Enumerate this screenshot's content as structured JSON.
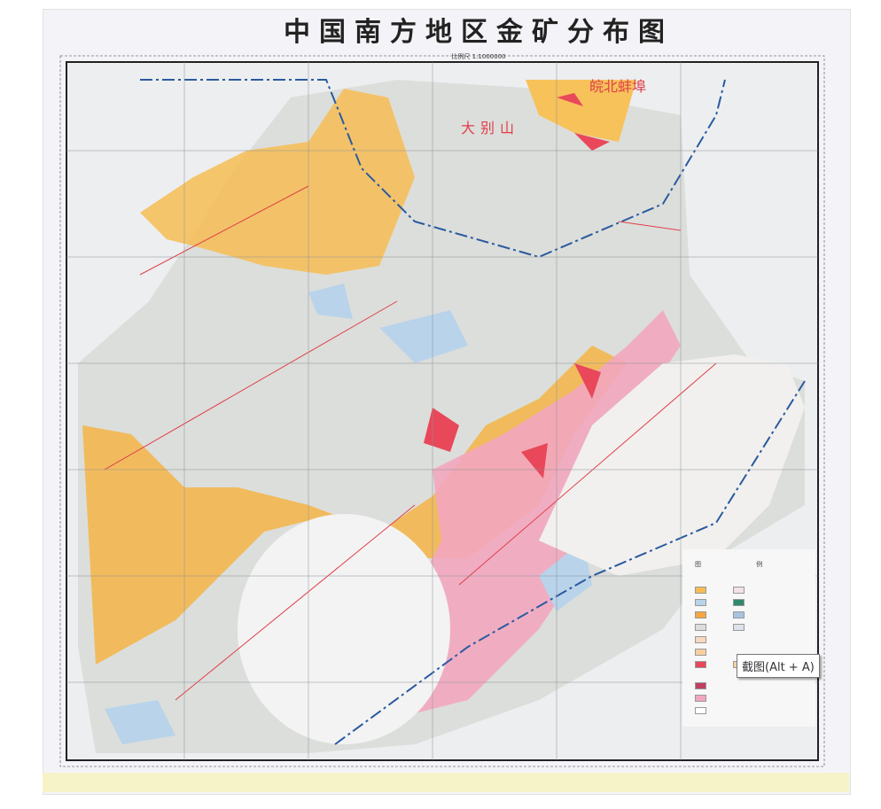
{
  "map": {
    "title": "中国南方地区金矿分布图",
    "scale": "比例尺 1:1000000",
    "labels": [
      "皖北蚌埠",
      "大别山"
    ],
    "legend_title": "图 例",
    "colors": {
      "orange": "#f7b64a",
      "pink": "#f2a7bf",
      "red": "#e8485a",
      "light_blue": "#b9d3ea",
      "gray": "#d9dbd8",
      "red_fault": "#e0404a"
    }
  },
  "tooltip": {
    "text": "截图(Alt + A)"
  }
}
